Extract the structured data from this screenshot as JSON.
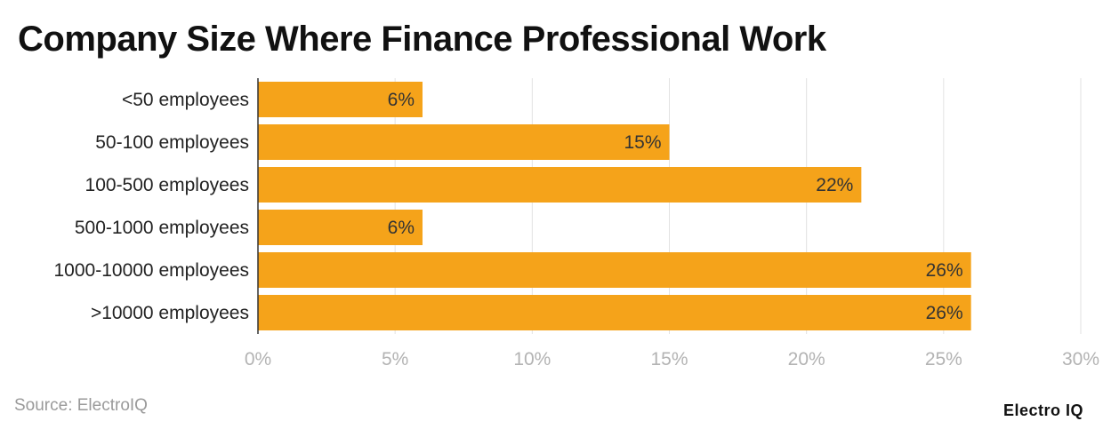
{
  "chart_data": {
    "type": "bar",
    "orientation": "horizontal",
    "title": "Company Size Where Finance Professional Work",
    "categories": [
      "<50 employees",
      "50-100 employees",
      "100-500 employees",
      "500-1000 employees",
      "1000-10000 employees",
      ">10000 employees"
    ],
    "values": [
      6,
      15,
      22,
      6,
      26,
      26
    ],
    "value_labels": [
      "6%",
      "15%",
      "22%",
      "6%",
      "26%",
      "26%"
    ],
    "xlim": [
      0,
      30
    ],
    "xticks": [
      0,
      5,
      10,
      15,
      20,
      25,
      30
    ],
    "xtick_labels": [
      "0%",
      "5%",
      "10%",
      "15%",
      "20%",
      "25%",
      "30%"
    ],
    "xlabel": "",
    "ylabel": "",
    "grid": "vertical",
    "bar_color": "#F5A31A"
  },
  "footer": {
    "source": "Source: ElectroIQ",
    "brand": "Electro IQ"
  }
}
